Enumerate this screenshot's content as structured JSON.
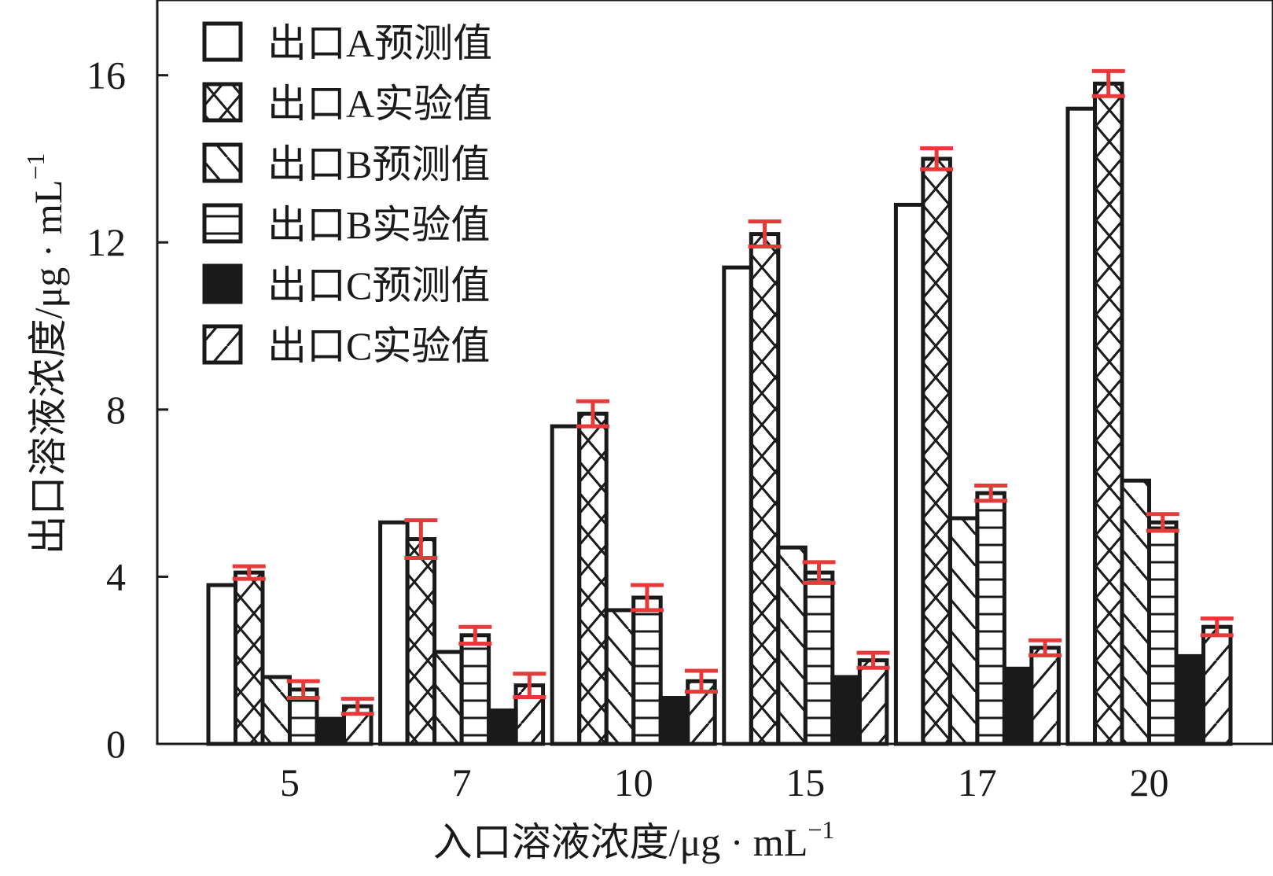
{
  "chart_data": {
    "type": "bar",
    "xlabel": "入口溶液浓度/μg · mL",
    "xlabel_sup": "−1",
    "ylabel": "出口溶液浓度/μg · mL",
    "ylabel_sup": "−1",
    "categories": [
      "5",
      "7",
      "10",
      "15",
      "17",
      "20"
    ],
    "ylim": [
      0,
      17.8
    ],
    "yticks": [
      0,
      4,
      8,
      12,
      16
    ],
    "series": [
      {
        "name": "出口A预测值",
        "pattern": "empty",
        "values": [
          3.8,
          5.3,
          7.6,
          11.4,
          12.9,
          15.2
        ]
      },
      {
        "name": "出口A实验值",
        "pattern": "crosshatch",
        "values": [
          4.1,
          4.9,
          7.9,
          12.2,
          14.0,
          15.8
        ],
        "errors": [
          0.15,
          0.45,
          0.3,
          0.3,
          0.25,
          0.3
        ]
      },
      {
        "name": "出口B预测值",
        "pattern": "backslash",
        "values": [
          1.6,
          2.2,
          3.2,
          4.7,
          5.4,
          6.3
        ]
      },
      {
        "name": "出口B实验值",
        "pattern": "horizontal",
        "values": [
          1.3,
          2.6,
          3.5,
          4.1,
          6.0,
          5.3
        ],
        "errors": [
          0.2,
          0.2,
          0.3,
          0.25,
          0.18,
          0.2
        ]
      },
      {
        "name": "出口C预测值",
        "pattern": "solid",
        "values": [
          0.6,
          0.8,
          1.1,
          1.6,
          1.8,
          2.1
        ]
      },
      {
        "name": "出口C实验值",
        "pattern": "slash",
        "values": [
          0.9,
          1.4,
          1.5,
          2.0,
          2.3,
          2.8
        ],
        "errors": [
          0.18,
          0.28,
          0.25,
          0.18,
          0.18,
          0.2
        ]
      }
    ],
    "error_bar_color": "#e63a3a",
    "bar_edge_color": "#1a1a1a",
    "legend_location": "top-left",
    "grid": false
  }
}
